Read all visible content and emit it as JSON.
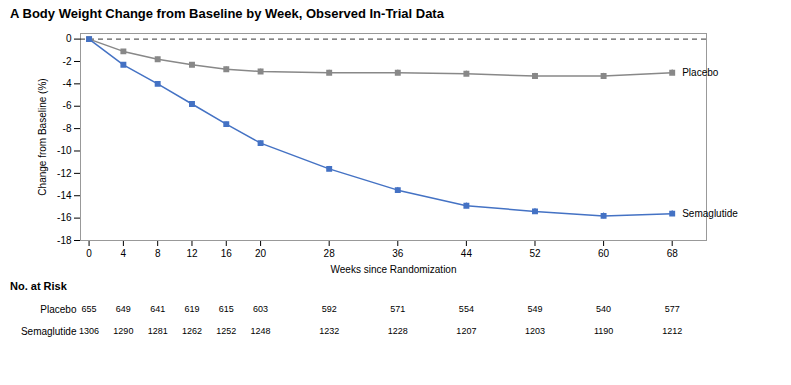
{
  "chart_data": {
    "type": "line",
    "title": "A  Body Weight Change from Baseline by Week, Observed In-Trial Data",
    "xlabel": "Weeks since Randomization",
    "ylabel": "Change from Baseline (%)",
    "x": [
      0,
      4,
      8,
      12,
      16,
      20,
      28,
      36,
      44,
      52,
      60,
      68
    ],
    "series": [
      {
        "name": "Placebo",
        "color": "#888888",
        "marker": "square",
        "values": [
          0,
          -1.1,
          -1.8,
          -2.3,
          -2.7,
          -2.9,
          -3.0,
          -3.0,
          -3.1,
          -3.3,
          -3.3,
          -3.0
        ],
        "errors": [
          0.0,
          0.15,
          0.18,
          0.2,
          0.22,
          0.22,
          0.22,
          0.23,
          0.24,
          0.24,
          0.24,
          0.25
        ]
      },
      {
        "name": "Semaglutide",
        "color": "#4472C4",
        "marker": "square",
        "values": [
          0,
          -2.3,
          -4.0,
          -5.8,
          -7.6,
          -9.3,
          -11.6,
          -13.5,
          -14.9,
          -15.4,
          -15.8,
          -15.6
        ],
        "errors": [
          0.0,
          0.12,
          0.14,
          0.16,
          0.18,
          0.2,
          0.22,
          0.24,
          0.25,
          0.26,
          0.26,
          0.26
        ]
      }
    ],
    "reference_y": 0,
    "xlim": [
      -1,
      72
    ],
    "ylim": [
      -18,
      0.5
    ],
    "xticks": [
      0,
      4,
      8,
      12,
      16,
      20,
      28,
      36,
      44,
      52,
      60,
      68
    ],
    "yticks": [
      0,
      -2,
      -4,
      -6,
      -8,
      -10,
      -12,
      -14,
      -16,
      -18
    ],
    "at_risk": {
      "title": "No. at Risk",
      "x": [
        0,
        4,
        8,
        12,
        16,
        20,
        28,
        36,
        44,
        52,
        60,
        68
      ],
      "rows": [
        {
          "name": "Placebo",
          "values": [
            655,
            649,
            641,
            619,
            615,
            603,
            592,
            571,
            554,
            549,
            540,
            577
          ]
        },
        {
          "name": "Semaglutide",
          "values": [
            1306,
            1290,
            1281,
            1262,
            1252,
            1248,
            1232,
            1228,
            1207,
            1203,
            1190,
            1212
          ]
        }
      ]
    }
  }
}
